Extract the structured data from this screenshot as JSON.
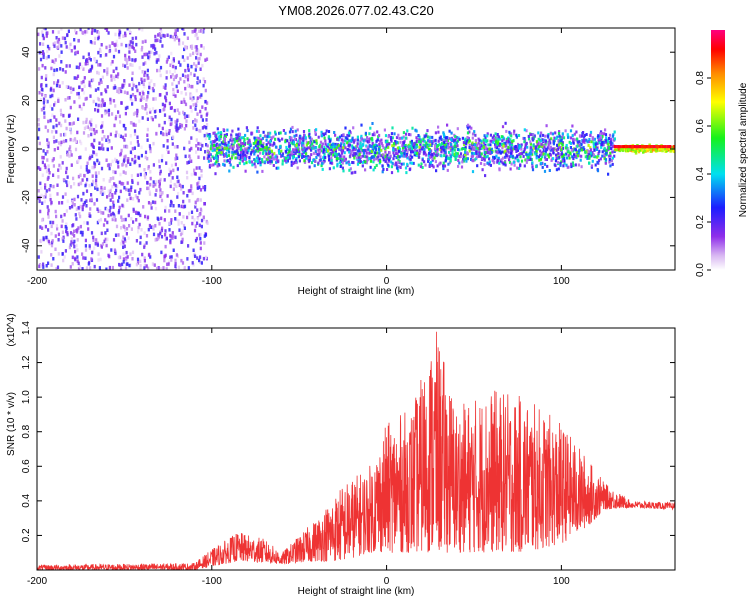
{
  "title": "YM08.2026.077.02.43.C20",
  "colors": {
    "snr_line": "#ee3333",
    "frame": "#000000"
  },
  "chart_data": [
    {
      "type": "heatmap",
      "xlabel": "Height of straight line (km)",
      "ylabel": "Frequency (Hz)",
      "xlim": [
        -200,
        165
      ],
      "ylim": [
        -50,
        50
      ],
      "xticks": [
        -200,
        -100,
        0,
        100
      ],
      "yticks": [
        -40,
        -20,
        0,
        20,
        40
      ],
      "colorbar": {
        "label": "Normalized spectral amplitude",
        "range": [
          0,
          1
        ],
        "ticks": [
          "0.0",
          "0.2",
          "0.4",
          "0.6",
          "0.8"
        ],
        "colormap": "rainbow-white-purple-blue-cyan-green-yellow-orange-red-magenta"
      },
      "regions": [
        {
          "x": [
            -200,
            -103
          ],
          "y": [
            -50,
            50
          ],
          "amplitude": [
            0.02,
            0.25
          ],
          "pattern": "speckle"
        },
        {
          "x": [
            -103,
            130
          ],
          "y": [
            -12,
            12
          ],
          "amplitude": [
            0.1,
            0.7
          ],
          "pattern": "band"
        },
        {
          "x": [
            130,
            165
          ],
          "y": [
            -2,
            2
          ],
          "amplitude": [
            0.6,
            0.9
          ],
          "pattern": "narrow-band"
        }
      ],
      "grid": false
    },
    {
      "type": "line",
      "xlabel": "Height of straight line (km)",
      "ylabel": "SNR (10 * v/v)",
      "y_multiplier": "(x10^4)",
      "xlim": [
        -200,
        165
      ],
      "ylim": [
        0,
        1.4
      ],
      "xticks": [
        -200,
        -100,
        0,
        100
      ],
      "yticks": [
        "0.2",
        "0.4",
        "0.6",
        "0.8",
        "1.0",
        "1.2",
        "1.4"
      ],
      "series": [
        {
          "envelope": [
            {
              "x": -200,
              "low": 0.0,
              "high": 0.03
            },
            {
              "x": -110,
              "low": 0.0,
              "high": 0.04
            },
            {
              "x": -100,
              "low": 0.02,
              "high": 0.12
            },
            {
              "x": -85,
              "low": 0.05,
              "high": 0.22
            },
            {
              "x": -70,
              "low": 0.04,
              "high": 0.18
            },
            {
              "x": -60,
              "low": 0.03,
              "high": 0.1
            },
            {
              "x": -40,
              "low": 0.05,
              "high": 0.3
            },
            {
              "x": -25,
              "low": 0.05,
              "high": 0.5
            },
            {
              "x": -10,
              "low": 0.1,
              "high": 0.6
            },
            {
              "x": 0,
              "low": 0.1,
              "high": 0.85
            },
            {
              "x": 15,
              "low": 0.1,
              "high": 0.95
            },
            {
              "x": 28,
              "low": 0.1,
              "high": 1.4
            },
            {
              "x": 40,
              "low": 0.1,
              "high": 0.95
            },
            {
              "x": 60,
              "low": 0.1,
              "high": 1.05
            },
            {
              "x": 80,
              "low": 0.1,
              "high": 1.0
            },
            {
              "x": 100,
              "low": 0.15,
              "high": 0.85
            },
            {
              "x": 115,
              "low": 0.25,
              "high": 0.65
            },
            {
              "x": 125,
              "low": 0.35,
              "high": 0.5
            },
            {
              "x": 140,
              "low": 0.36,
              "high": 0.4
            },
            {
              "x": 165,
              "low": 0.35,
              "high": 0.39
            }
          ]
        }
      ],
      "grid": false
    }
  ]
}
